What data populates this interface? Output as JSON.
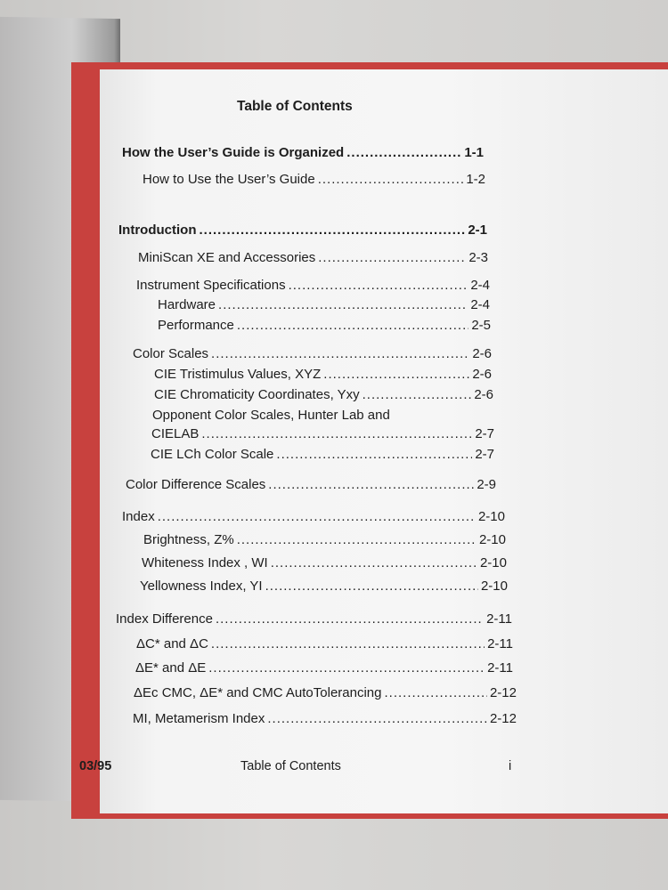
{
  "document": {
    "title": "Table of Contents",
    "entries": [
      {
        "text": "How the User’s Guide is Organized",
        "page": "1-1",
        "bold": true
      },
      {
        "text": "How to Use the User’s Guide",
        "page": "1-2"
      },
      {
        "text": "Introduction",
        "page": "2-1",
        "bold": true
      },
      {
        "text": "MiniScan XE and Accessories",
        "page": "2-3"
      },
      {
        "text": "Instrument Specifications",
        "page": "2-4"
      },
      {
        "text": "Hardware",
        "page": "2-4"
      },
      {
        "text": "Performance",
        "page": "2-5"
      },
      {
        "text": "Color Scales",
        "page": "2-6"
      },
      {
        "text": "CIE Tristimulus Values, XYZ",
        "page": "2-6"
      },
      {
        "text": "CIE Chromaticity Coordinates, Yxy",
        "page": "2-6"
      },
      {
        "text": "Opponent Color Scales, Hunter Lab and"
      },
      {
        "text": "CIELAB",
        "page": "2-7"
      },
      {
        "text": "CIE LCh Color Scale",
        "page": "2-7"
      },
      {
        "text": "Color Difference Scales",
        "page": "2-9"
      },
      {
        "text": "Index",
        "page": "2-10"
      },
      {
        "text": "Brightness, Z%",
        "page": "2-10"
      },
      {
        "text": "Whiteness Index , WI",
        "page": "2-10"
      },
      {
        "text": "Yellowness Index, YI",
        "page": "2-10"
      },
      {
        "text": "Index Difference",
        "page": "2-11"
      },
      {
        "text": "ΔC* and ΔC",
        "page": "2-11"
      },
      {
        "text": "ΔE* and ΔE",
        "page": "2-11"
      },
      {
        "text": "ΔEc CMC, ΔE* and CMC AutoTolerancing",
        "page": "2-12"
      },
      {
        "text": "MI, Metamerism Index",
        "page": "2-12"
      }
    ],
    "footer": {
      "date": "03/95",
      "section": "Table of Contents",
      "page_number": "i"
    }
  }
}
